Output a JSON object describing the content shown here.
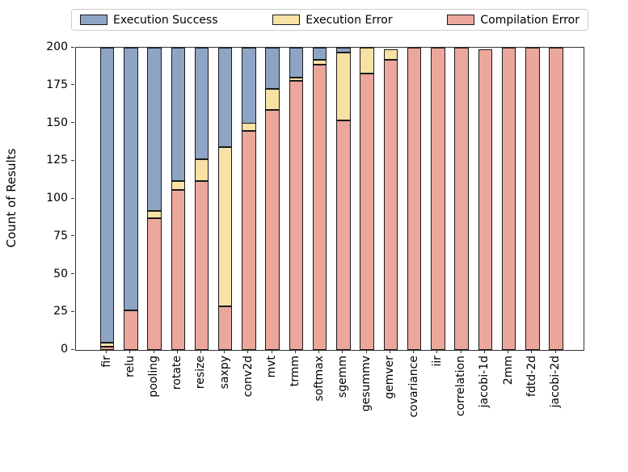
{
  "chart_data": {
    "type": "bar",
    "stacked": true,
    "title": "",
    "xlabel": "",
    "ylabel": "Count of Results",
    "ylim": [
      0,
      200
    ],
    "yticks": [
      0,
      25,
      50,
      75,
      100,
      125,
      150,
      175,
      200
    ],
    "grid": false,
    "legend_position": "top",
    "categories": [
      "fir",
      "relu",
      "pooling",
      "rotate",
      "resize",
      "saxpy",
      "conv2d",
      "mvt",
      "trmm",
      "softmax",
      "sgemm",
      "gesummv",
      "gemver",
      "covariance",
      "iir",
      "correlation",
      "jacobi-1d",
      "2mm",
      "fdtd-2d",
      "jacobi-2d"
    ],
    "series": [
      {
        "name": "Execution Success",
        "color": "#8da4c4",
        "values": [
          195,
          174,
          108,
          88,
          74,
          66,
          50,
          27,
          20,
          8,
          3,
          0,
          0,
          0,
          0,
          0,
          0,
          0,
          0,
          0
        ]
      },
      {
        "name": "Execution Error",
        "color": "#f7e2a3",
        "values": [
          3,
          0,
          5,
          6,
          14,
          105,
          5,
          14,
          2,
          3,
          45,
          17,
          7,
          0,
          0,
          0,
          0,
          0,
          0,
          0
        ]
      },
      {
        "name": "Compilation Error",
        "color": "#eba79c",
        "values": [
          2,
          26,
          87,
          106,
          112,
          29,
          145,
          159,
          178,
          189,
          152,
          183,
          192,
          200,
          200,
          200,
          199,
          200,
          200,
          200
        ]
      }
    ],
    "bar_edge_color": "#1a1a1a",
    "spine_color": "#333333"
  }
}
